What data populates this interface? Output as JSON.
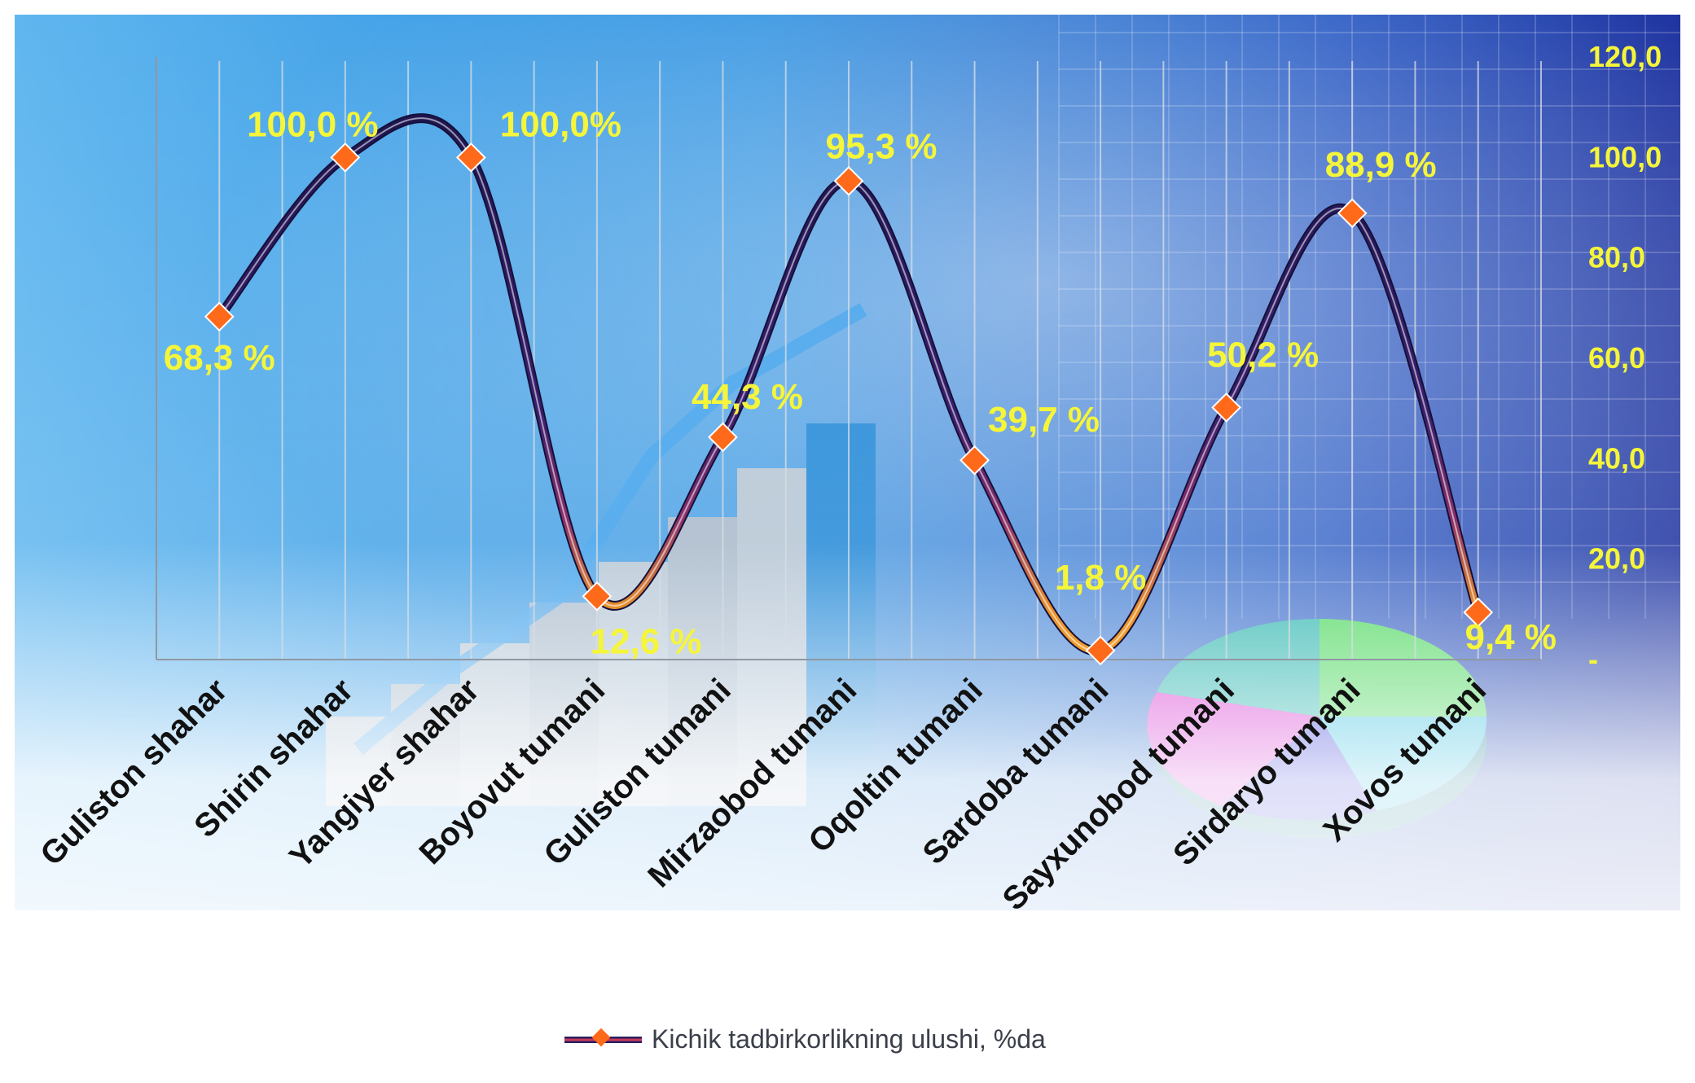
{
  "chart_data": {
    "type": "line",
    "categories": [
      "Guliston shahar",
      "Shirin shahar",
      "Yangiyer shahar",
      "Boyovut tumani",
      "Guliston tumani",
      "Mirzaobod tumani",
      "Oqoltin tumani",
      "Sardoba tumani",
      "Sayxunobod tumani",
      "Sirdaryo tumani",
      "Xovos tumani"
    ],
    "series": [
      {
        "name": "Kichik tadbirkorlikning ulushi, %da",
        "values": [
          68.3,
          100.0,
          100.0,
          12.6,
          44.3,
          95.3,
          39.7,
          1.8,
          50.2,
          88.9,
          9.4
        ]
      }
    ],
    "data_labels": [
      "68,3 %",
      "100,0 %",
      "100,0%",
      "12,6 %",
      "44,3 %",
      "95,3 %",
      "39,7 %",
      "1,8 %",
      "50,2 %",
      "88,9 %",
      "9,4 %"
    ],
    "y_ticks": [
      "-",
      "20,0",
      "40,0",
      "60,0",
      "80,0",
      "100,0",
      "120,0"
    ],
    "ylim": [
      0,
      120
    ],
    "y_axis_side": "right",
    "grid": "vertical",
    "legend_position": "bottom",
    "colors": {
      "line": "#2a1d5e",
      "line_low": "#e8902a",
      "marker": "#ff6a1a",
      "labels": "#f5f53a",
      "background": "#1e7fcf"
    }
  }
}
